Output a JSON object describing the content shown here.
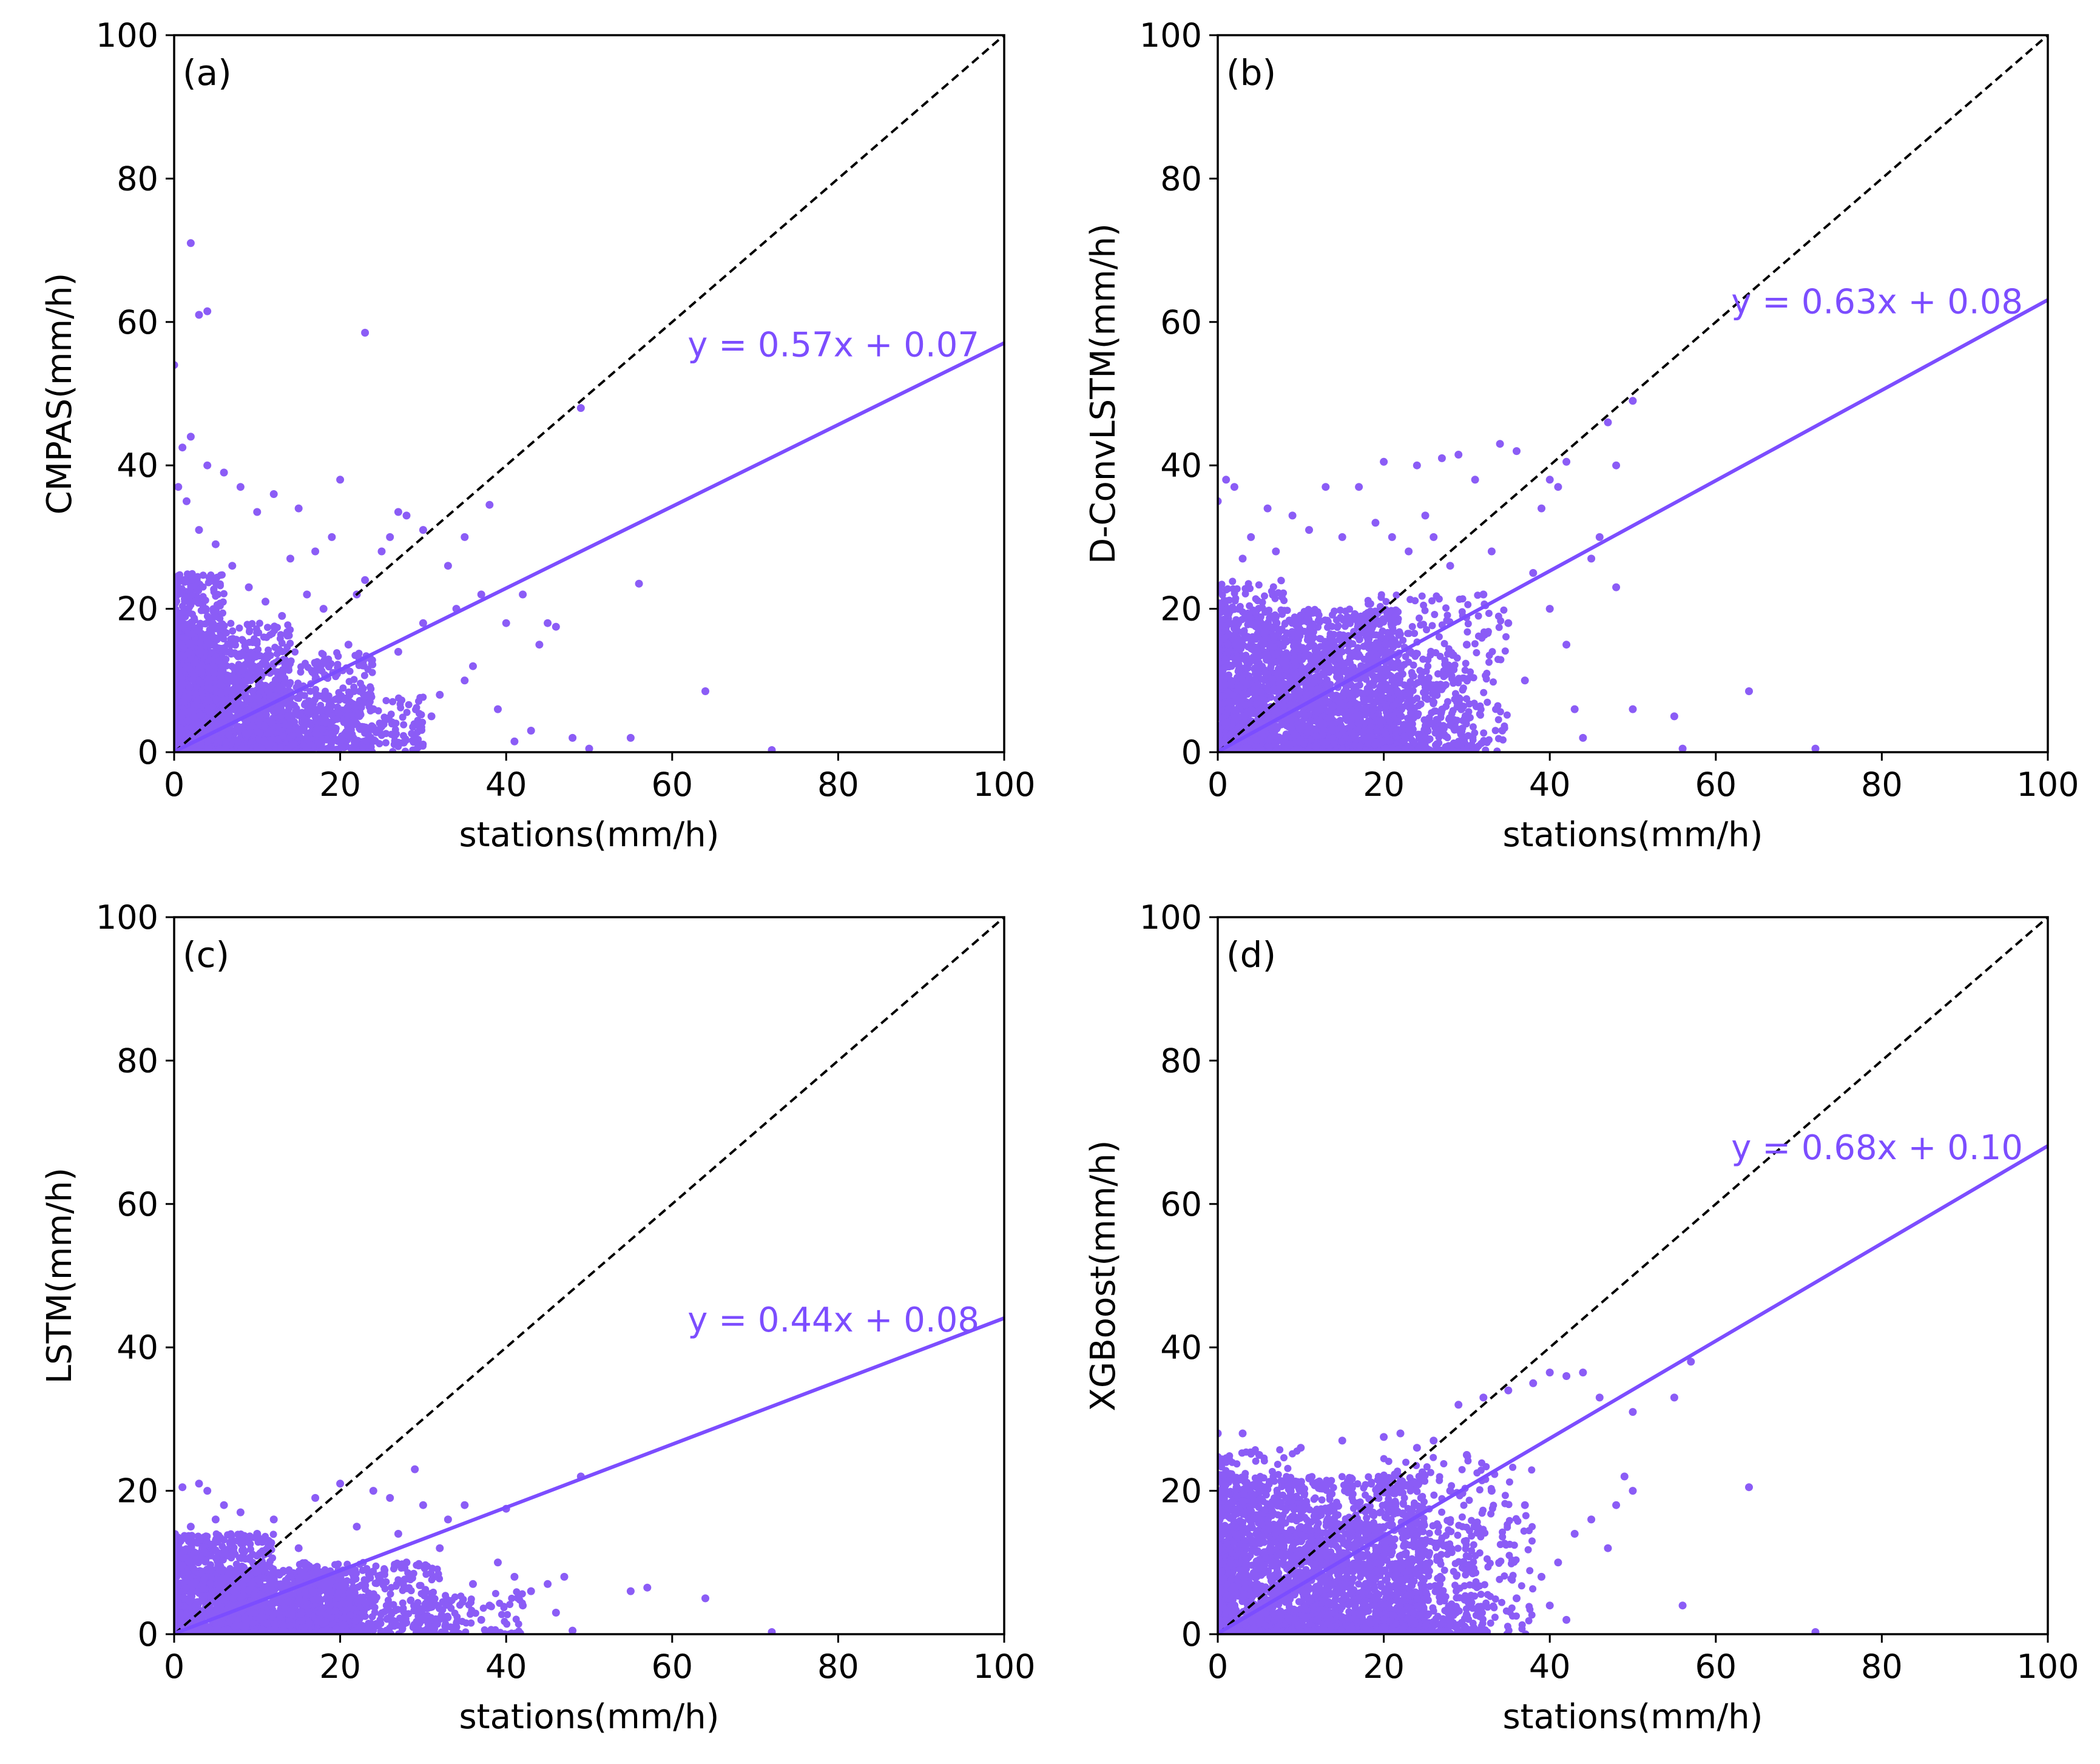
{
  "colors": {
    "scatter": "#8b5cf6",
    "fit": "#7c4dff",
    "identity": "#000000",
    "frame": "#000000"
  },
  "chart_data": [
    {
      "type": "scatter",
      "panel_label": "(a)",
      "xlabel": "stations(mm/h)",
      "ylabel": "CMPAS(mm/h)",
      "xlim": [
        0,
        100
      ],
      "ylim": [
        0,
        100
      ],
      "xticks": [
        "0",
        "20",
        "40",
        "60",
        "80",
        "100"
      ],
      "yticks": [
        "0",
        "20",
        "40",
        "60",
        "80",
        "100"
      ],
      "fit": {
        "slope": 0.57,
        "intercept": 0.07,
        "label": "y = 0.57x + 0.07"
      },
      "identity_line": true,
      "points": [
        [
          2,
          71
        ],
        [
          3,
          61
        ],
        [
          4,
          61.5
        ],
        [
          23,
          58.5
        ],
        [
          0,
          54
        ],
        [
          49,
          48
        ],
        [
          56,
          23.5
        ],
        [
          64,
          8.5
        ],
        [
          55,
          2
        ],
        [
          48,
          2
        ],
        [
          45,
          18
        ],
        [
          42,
          22
        ],
        [
          38,
          34.5
        ],
        [
          37,
          22
        ],
        [
          35,
          30
        ],
        [
          33,
          26
        ],
        [
          30,
          31
        ],
        [
          28,
          33
        ],
        [
          27,
          33.5
        ],
        [
          40,
          18
        ],
        [
          44,
          15
        ],
        [
          46,
          17.5
        ],
        [
          36,
          12
        ],
        [
          34,
          20
        ],
        [
          32,
          8
        ],
        [
          31,
          5
        ],
        [
          29,
          2
        ],
        [
          26,
          30
        ],
        [
          25,
          28
        ],
        [
          24,
          6
        ],
        [
          22,
          22
        ],
        [
          20,
          38
        ],
        [
          19,
          30
        ],
        [
          17,
          28
        ],
        [
          15,
          34
        ],
        [
          12,
          36
        ],
        [
          10,
          33.5
        ],
        [
          8,
          37
        ],
        [
          6,
          39
        ],
        [
          4,
          40
        ],
        [
          2,
          44
        ],
        [
          1,
          42.5
        ],
        [
          0.5,
          37
        ],
        [
          1.5,
          35
        ],
        [
          3,
          31
        ],
        [
          5,
          29
        ],
        [
          7,
          26
        ],
        [
          9,
          23
        ],
        [
          11,
          21
        ],
        [
          13,
          19
        ],
        [
          14,
          27
        ],
        [
          16,
          22
        ],
        [
          18,
          20
        ],
        [
          21,
          15
        ],
        [
          23,
          24
        ],
        [
          27,
          14
        ],
        [
          30,
          18
        ],
        [
          35,
          10
        ],
        [
          39,
          6
        ],
        [
          43,
          3
        ],
        [
          72,
          0.3
        ],
        [
          50,
          0.5
        ],
        [
          41,
          1.5
        ]
      ],
      "dense_regions": [
        [
          0,
          6,
          0,
          25,
          700
        ],
        [
          0,
          14,
          0,
          18,
          900
        ],
        [
          4,
          24,
          0,
          14,
          700
        ],
        [
          10,
          30,
          0,
          8,
          350
        ]
      ]
    },
    {
      "type": "scatter",
      "panel_label": "(b)",
      "xlabel": "stations(mm/h)",
      "ylabel": "D-ConvLSTM(mm/h)",
      "xlim": [
        0,
        100
      ],
      "ylim": [
        0,
        100
      ],
      "xticks": [
        "0",
        "20",
        "40",
        "60",
        "80",
        "100"
      ],
      "yticks": [
        "0",
        "20",
        "40",
        "60",
        "80",
        "100"
      ],
      "fit": {
        "slope": 0.63,
        "intercept": 0.08,
        "label": "y = 0.63x + 0.08"
      },
      "identity_line": true,
      "points": [
        [
          50,
          49
        ],
        [
          48,
          40
        ],
        [
          47,
          46
        ],
        [
          42,
          40.5
        ],
        [
          40,
          38
        ],
        [
          39,
          34
        ],
        [
          41,
          37
        ],
        [
          36,
          42
        ],
        [
          34,
          43
        ],
        [
          31,
          38
        ],
        [
          29,
          41.5
        ],
        [
          27,
          41
        ],
        [
          24,
          40
        ],
        [
          20,
          40.5
        ],
        [
          17,
          37
        ],
        [
          13,
          37
        ],
        [
          9,
          33
        ],
        [
          6,
          34
        ],
        [
          2,
          37
        ],
        [
          1,
          38
        ],
        [
          0,
          35
        ],
        [
          64,
          8.5
        ],
        [
          72,
          0.5
        ],
        [
          56,
          0.5
        ],
        [
          55,
          5
        ],
        [
          50,
          6
        ],
        [
          48,
          23
        ],
        [
          46,
          30
        ],
        [
          45,
          27
        ],
        [
          44,
          2
        ],
        [
          43,
          6
        ],
        [
          42,
          15
        ],
        [
          40,
          20
        ],
        [
          38,
          25
        ],
        [
          37,
          10
        ],
        [
          35,
          18
        ],
        [
          33,
          28
        ],
        [
          32,
          22
        ],
        [
          30,
          15
        ],
        [
          28,
          26
        ],
        [
          26,
          30
        ],
        [
          25,
          33
        ],
        [
          23,
          28
        ],
        [
          21,
          30
        ],
        [
          19,
          32
        ],
        [
          15,
          30
        ],
        [
          11,
          31
        ],
        [
          7,
          28
        ],
        [
          4,
          30
        ],
        [
          3,
          27
        ]
      ],
      "dense_regions": [
        [
          0,
          22,
          0,
          20,
          1800
        ],
        [
          0,
          8,
          0,
          24,
          300
        ],
        [
          8,
          30,
          0,
          14,
          600
        ],
        [
          18,
          35,
          0,
          22,
          350
        ]
      ]
    },
    {
      "type": "scatter",
      "panel_label": "(c)",
      "xlabel": "stations(mm/h)",
      "ylabel": "LSTM(mm/h)",
      "xlim": [
        0,
        100
      ],
      "ylim": [
        0,
        100
      ],
      "xticks": [
        "0",
        "20",
        "40",
        "60",
        "80",
        "100"
      ],
      "yticks": [
        "0",
        "20",
        "40",
        "60",
        "80",
        "100"
      ],
      "fit": {
        "slope": 0.44,
        "intercept": 0.08,
        "label": "y = 0.44x + 0.08"
      },
      "identity_line": true,
      "points": [
        [
          1,
          20.5
        ],
        [
          3,
          21
        ],
        [
          4,
          20
        ],
        [
          6,
          18
        ],
        [
          8,
          17
        ],
        [
          12,
          16
        ],
        [
          17,
          19
        ],
        [
          20,
          21
        ],
        [
          24,
          20
        ],
        [
          26,
          19
        ],
        [
          29,
          23
        ],
        [
          30,
          18
        ],
        [
          33,
          16
        ],
        [
          35,
          18
        ],
        [
          40,
          17.5
        ],
        [
          41,
          8
        ],
        [
          43,
          6
        ],
        [
          45,
          7
        ],
        [
          47,
          8
        ],
        [
          49,
          22
        ],
        [
          48,
          0.5
        ],
        [
          46,
          3
        ],
        [
          55,
          6
        ],
        [
          57,
          6.5
        ],
        [
          64,
          5
        ],
        [
          72,
          0.3
        ],
        [
          38,
          4
        ],
        [
          36,
          7
        ],
        [
          34,
          1
        ],
        [
          31,
          5
        ],
        [
          37,
          2
        ],
        [
          42,
          4
        ],
        [
          39,
          10
        ],
        [
          32,
          12
        ],
        [
          28,
          10
        ],
        [
          27,
          14
        ],
        [
          22,
          15
        ],
        [
          15,
          12
        ],
        [
          10,
          14
        ],
        [
          5,
          16
        ],
        [
          2,
          15
        ]
      ],
      "dense_regions": [
        [
          0,
          12,
          0,
          14,
          1000
        ],
        [
          5,
          22,
          0,
          9,
          1000
        ],
        [
          15,
          32,
          0,
          10,
          500
        ],
        [
          30,
          42,
          0,
          6,
          100
        ]
      ]
    },
    {
      "type": "scatter",
      "panel_label": "(d)",
      "xlabel": "stations(mm/h)",
      "ylabel": "XGBoost(mm/h)",
      "xlim": [
        0,
        100
      ],
      "ylim": [
        0,
        100
      ],
      "xticks": [
        "0",
        "20",
        "40",
        "60",
        "80",
        "100"
      ],
      "yticks": [
        "0",
        "20",
        "40",
        "60",
        "80",
        "100"
      ],
      "fit": {
        "slope": 0.68,
        "intercept": 0.1,
        "label": "y = 0.68x + 0.10"
      },
      "identity_line": true,
      "points": [
        [
          0,
          28
        ],
        [
          3,
          28
        ],
        [
          10,
          26
        ],
        [
          20,
          27.5
        ],
        [
          26,
          27
        ],
        [
          29,
          32
        ],
        [
          32,
          33
        ],
        [
          35,
          34
        ],
        [
          38,
          35
        ],
        [
          40,
          36.5
        ],
        [
          42,
          36
        ],
        [
          44,
          36.5
        ],
        [
          46,
          33
        ],
        [
          50,
          31
        ],
        [
          55,
          33
        ],
        [
          57,
          38
        ],
        [
          50,
          20
        ],
        [
          49,
          22
        ],
        [
          48,
          18
        ],
        [
          47,
          12
        ],
        [
          45,
          16
        ],
        [
          43,
          14
        ],
        [
          41,
          10
        ],
        [
          39,
          8
        ],
        [
          37,
          18
        ],
        [
          36,
          5
        ],
        [
          64,
          20.5
        ],
        [
          56,
          4
        ],
        [
          72,
          0.3
        ],
        [
          42,
          2
        ],
        [
          40,
          4
        ],
        [
          33,
          20
        ],
        [
          31,
          15
        ],
        [
          30,
          25
        ],
        [
          28,
          20
        ],
        [
          24,
          26
        ],
        [
          22,
          28
        ],
        [
          15,
          27
        ],
        [
          5,
          25
        ],
        [
          1,
          24
        ]
      ],
      "dense_regions": [
        [
          0,
          25,
          0,
          22,
          2000
        ],
        [
          0,
          10,
          0,
          26,
          300
        ],
        [
          10,
          32,
          0,
          16,
          500
        ],
        [
          20,
          38,
          0,
          25,
          300
        ]
      ]
    }
  ]
}
